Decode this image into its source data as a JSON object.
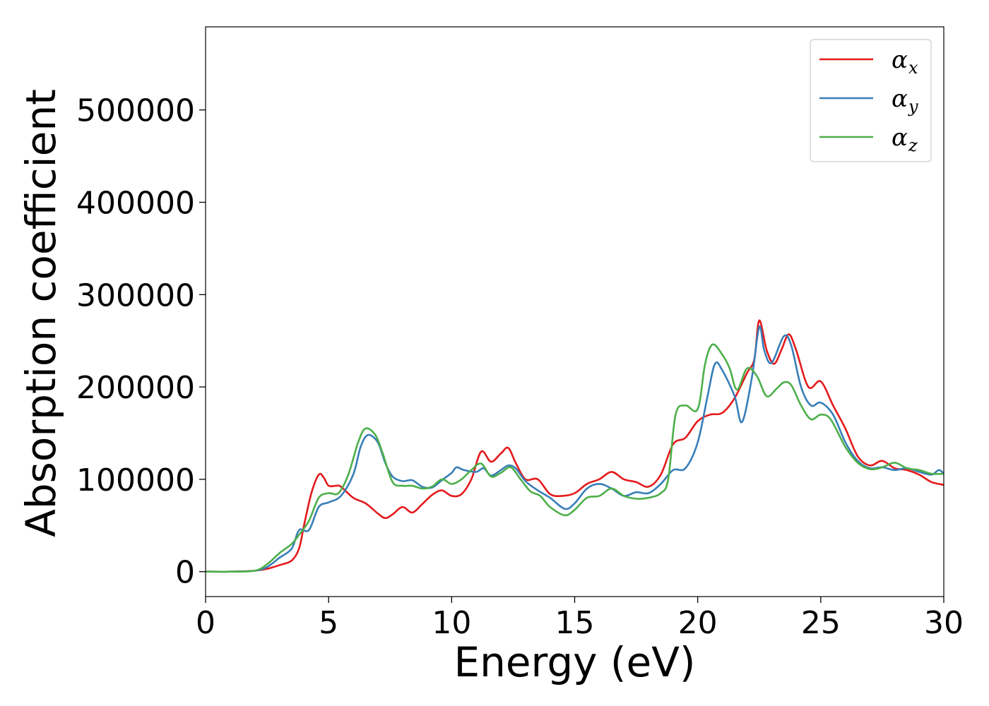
{
  "chart_data": {
    "type": "line",
    "title": "",
    "xlabel": "Energy (eV)",
    "ylabel": "Absorption coefficient",
    "xlim": [
      0,
      30
    ],
    "ylim": [
      -27000,
      590000
    ],
    "xticks": [
      0,
      5,
      10,
      15,
      20,
      25,
      30
    ],
    "yticks": [
      0,
      100000,
      200000,
      300000,
      400000,
      500000
    ],
    "xtick_labels": [
      "0",
      "5",
      "10",
      "15",
      "20",
      "25",
      "30"
    ],
    "ytick_labels": [
      "0",
      "100000",
      "200000",
      "300000",
      "400000",
      "500000"
    ],
    "grid": false,
    "legend_position": "top-right",
    "series": [
      {
        "name": "αx",
        "symbol": "α",
        "subscript": "x",
        "color": "#e41a1c",
        "points": [
          [
            0,
            0
          ],
          [
            1,
            0
          ],
          [
            2,
            1000
          ],
          [
            2.5,
            3000
          ],
          [
            3,
            7000
          ],
          [
            3.5,
            12000
          ],
          [
            3.8,
            25000
          ],
          [
            4,
            50000
          ],
          [
            4.3,
            85000
          ],
          [
            4.6,
            105000
          ],
          [
            4.8,
            102000
          ],
          [
            5,
            93000
          ],
          [
            5.3,
            93000
          ],
          [
            5.5,
            92000
          ],
          [
            6,
            80000
          ],
          [
            6.5,
            74000
          ],
          [
            7,
            63000
          ],
          [
            7.3,
            58000
          ],
          [
            7.6,
            62000
          ],
          [
            8,
            70000
          ],
          [
            8.4,
            64000
          ],
          [
            8.8,
            73000
          ],
          [
            9.2,
            83000
          ],
          [
            9.6,
            88000
          ],
          [
            10,
            82000
          ],
          [
            10.4,
            84000
          ],
          [
            10.8,
            100000
          ],
          [
            11.2,
            130000
          ],
          [
            11.6,
            119000
          ],
          [
            12,
            128000
          ],
          [
            12.3,
            134000
          ],
          [
            12.6,
            118000
          ],
          [
            13,
            100000
          ],
          [
            13.5,
            100000
          ],
          [
            14,
            84000
          ],
          [
            14.5,
            82000
          ],
          [
            15,
            85000
          ],
          [
            15.5,
            95000
          ],
          [
            16,
            100000
          ],
          [
            16.5,
            108000
          ],
          [
            17,
            100000
          ],
          [
            17.5,
            97000
          ],
          [
            18,
            92000
          ],
          [
            18.5,
            105000
          ],
          [
            19,
            138000
          ],
          [
            19.5,
            145000
          ],
          [
            20,
            163000
          ],
          [
            20.5,
            170000
          ],
          [
            21,
            172000
          ],
          [
            21.5,
            188000
          ],
          [
            22,
            215000
          ],
          [
            22.3,
            230000
          ],
          [
            22.5,
            272000
          ],
          [
            22.8,
            240000
          ],
          [
            23.1,
            225000
          ],
          [
            23.4,
            240000
          ],
          [
            23.7,
            257000
          ],
          [
            24,
            240000
          ],
          [
            24.5,
            200000
          ],
          [
            25,
            206000
          ],
          [
            25.5,
            180000
          ],
          [
            26,
            155000
          ],
          [
            26.5,
            125000
          ],
          [
            27,
            115000
          ],
          [
            27.5,
            120000
          ],
          [
            28,
            112000
          ],
          [
            28.5,
            110000
          ],
          [
            29,
            105000
          ],
          [
            29.5,
            97000
          ],
          [
            30,
            94000
          ]
        ]
      },
      {
        "name": "αy",
        "symbol": "α",
        "subscript": "y",
        "color": "#377eb8",
        "points": [
          [
            0,
            0
          ],
          [
            1,
            0
          ],
          [
            2,
            1000
          ],
          [
            2.5,
            5000
          ],
          [
            3,
            15000
          ],
          [
            3.5,
            25000
          ],
          [
            3.8,
            45000
          ],
          [
            4.2,
            45000
          ],
          [
            4.6,
            70000
          ],
          [
            5,
            75000
          ],
          [
            5.5,
            82000
          ],
          [
            6,
            105000
          ],
          [
            6.3,
            135000
          ],
          [
            6.6,
            148000
          ],
          [
            7,
            140000
          ],
          [
            7.3,
            118000
          ],
          [
            7.6,
            103000
          ],
          [
            8,
            98000
          ],
          [
            8.4,
            99000
          ],
          [
            8.8,
            92000
          ],
          [
            9.2,
            91000
          ],
          [
            9.6,
            99000
          ],
          [
            10,
            107000
          ],
          [
            10.2,
            113000
          ],
          [
            10.5,
            110000
          ],
          [
            11,
            108000
          ],
          [
            11.3,
            112000
          ],
          [
            11.6,
            104000
          ],
          [
            12,
            110000
          ],
          [
            12.3,
            115000
          ],
          [
            12.6,
            112000
          ],
          [
            13,
            98000
          ],
          [
            13.5,
            88000
          ],
          [
            14,
            80000
          ],
          [
            14.6,
            68000
          ],
          [
            15,
            74000
          ],
          [
            15.5,
            90000
          ],
          [
            16,
            95000
          ],
          [
            16.5,
            90000
          ],
          [
            17,
            82000
          ],
          [
            17.5,
            86000
          ],
          [
            18,
            85000
          ],
          [
            18.5,
            95000
          ],
          [
            19,
            110000
          ],
          [
            19.5,
            112000
          ],
          [
            20,
            140000
          ],
          [
            20.4,
            190000
          ],
          [
            20.7,
            225000
          ],
          [
            21,
            218000
          ],
          [
            21.5,
            190000
          ],
          [
            21.8,
            162000
          ],
          [
            22.2,
            210000
          ],
          [
            22.5,
            265000
          ],
          [
            22.7,
            240000
          ],
          [
            23,
            226000
          ],
          [
            23.5,
            255000
          ],
          [
            23.8,
            245000
          ],
          [
            24.2,
            200000
          ],
          [
            24.6,
            180000
          ],
          [
            25,
            183000
          ],
          [
            25.5,
            170000
          ],
          [
            26,
            140000
          ],
          [
            26.5,
            120000
          ],
          [
            27,
            112000
          ],
          [
            27.5,
            113000
          ],
          [
            28,
            110000
          ],
          [
            28.5,
            112000
          ],
          [
            29,
            108000
          ],
          [
            29.5,
            105000
          ],
          [
            29.8,
            110000
          ],
          [
            30,
            106000
          ]
        ]
      },
      {
        "name": "αz",
        "symbol": "α",
        "subscript": "z",
        "color": "#4daf4a",
        "points": [
          [
            0,
            0
          ],
          [
            1,
            0
          ],
          [
            2,
            1000
          ],
          [
            2.5,
            8000
          ],
          [
            3,
            20000
          ],
          [
            3.5,
            30000
          ],
          [
            3.8,
            40000
          ],
          [
            4.2,
            55000
          ],
          [
            4.6,
            80000
          ],
          [
            5,
            85000
          ],
          [
            5.4,
            85000
          ],
          [
            5.8,
            105000
          ],
          [
            6.2,
            140000
          ],
          [
            6.5,
            155000
          ],
          [
            6.9,
            148000
          ],
          [
            7.2,
            128000
          ],
          [
            7.6,
            97000
          ],
          [
            8,
            93000
          ],
          [
            8.4,
            93000
          ],
          [
            8.8,
            90000
          ],
          [
            9.2,
            92000
          ],
          [
            9.6,
            100000
          ],
          [
            10,
            95000
          ],
          [
            10.4,
            100000
          ],
          [
            10.8,
            110000
          ],
          [
            11.2,
            117000
          ],
          [
            11.6,
            103000
          ],
          [
            12,
            107000
          ],
          [
            12.4,
            113000
          ],
          [
            12.8,
            100000
          ],
          [
            13.2,
            87000
          ],
          [
            13.6,
            82000
          ],
          [
            14,
            70000
          ],
          [
            14.6,
            61000
          ],
          [
            15,
            67000
          ],
          [
            15.5,
            80000
          ],
          [
            16,
            82000
          ],
          [
            16.5,
            90000
          ],
          [
            17,
            82000
          ],
          [
            17.5,
            79000
          ],
          [
            18,
            80000
          ],
          [
            18.5,
            85000
          ],
          [
            18.8,
            100000
          ],
          [
            19.1,
            170000
          ],
          [
            19.5,
            180000
          ],
          [
            20,
            176000
          ],
          [
            20.3,
            225000
          ],
          [
            20.6,
            246000
          ],
          [
            21,
            235000
          ],
          [
            21.3,
            220000
          ],
          [
            21.6,
            197000
          ],
          [
            22,
            220000
          ],
          [
            22.4,
            212000
          ],
          [
            22.8,
            190000
          ],
          [
            23.2,
            198000
          ],
          [
            23.5,
            205000
          ],
          [
            23.8,
            202000
          ],
          [
            24.2,
            180000
          ],
          [
            24.6,
            165000
          ],
          [
            25,
            170000
          ],
          [
            25.4,
            165000
          ],
          [
            26,
            135000
          ],
          [
            26.5,
            118000
          ],
          [
            27,
            111000
          ],
          [
            27.5,
            113000
          ],
          [
            28,
            118000
          ],
          [
            28.5,
            112000
          ],
          [
            29,
            110000
          ],
          [
            29.5,
            106000
          ],
          [
            30,
            106000
          ]
        ]
      }
    ]
  }
}
